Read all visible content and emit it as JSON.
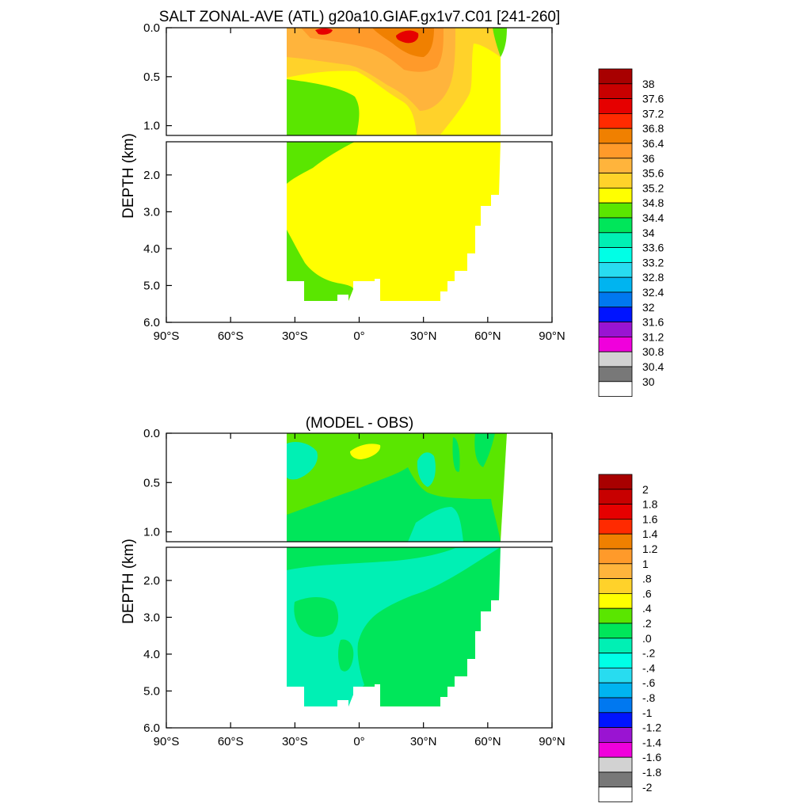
{
  "chart_data": [
    {
      "type": "heatmap",
      "title": "SALT ZONAL-AVE (ATL) g20a10.GIAF.gx1v7.C01 [241-260]",
      "ylabel": "DEPTH (km)",
      "x_ticks": [
        "90°S",
        "60°S",
        "30°S",
        "0°",
        "30°N",
        "60°N",
        "90°N"
      ],
      "y_ticks_upper": [
        "0.0",
        "0.5",
        "1.0"
      ],
      "y_ticks_lower": [
        "2.0",
        "3.0",
        "4.0",
        "5.0",
        "6.0"
      ],
      "xlim": [
        -90,
        90
      ],
      "ylim_km": [
        6.0,
        0.0
      ],
      "colorbar": {
        "labels": [
          "38",
          "37.6",
          "37.2",
          "36.8",
          "36.4",
          "36",
          "35.6",
          "35.2",
          "34.8",
          "34.4",
          "34",
          "33.6",
          "33.2",
          "32.8",
          "32.4",
          "32",
          "31.6",
          "31.2",
          "30.8",
          "30.4",
          "30"
        ],
        "colors": [
          "#a80000",
          "#c80000",
          "#e60000",
          "#ff2a00",
          "#f08000",
          "#ff9a2a",
          "#ffb43c",
          "#ffd22a",
          "#ffff00",
          "#5ae600",
          "#00e65a",
          "#00f0b4",
          "#00ffe6",
          "#28dcf0",
          "#00b4f0",
          "#0078f0",
          "#0014ff",
          "#9a14d2",
          "#f000dc",
          "#d2d2d2",
          "#787878",
          "#ffffff"
        ]
      }
    },
    {
      "type": "heatmap",
      "title": "(MODEL - OBS)",
      "ylabel": "DEPTH (km)",
      "x_ticks": [
        "90°S",
        "60°S",
        "30°S",
        "0°",
        "30°N",
        "60°N",
        "90°N"
      ],
      "y_ticks_upper": [
        "0.0",
        "0.5",
        "1.0"
      ],
      "y_ticks_lower": [
        "2.0",
        "3.0",
        "4.0",
        "5.0",
        "6.0"
      ],
      "xlim": [
        -90,
        90
      ],
      "ylim_km": [
        6.0,
        0.0
      ],
      "colorbar": {
        "labels": [
          "2",
          "1.8",
          "1.6",
          "1.4",
          "1.2",
          "1",
          ".8",
          ".6",
          ".4",
          ".2",
          ".0",
          "-.2",
          "-.4",
          "-.6",
          "-.8",
          "-1",
          "-1.2",
          "-1.4",
          "-1.6",
          "-1.8",
          "-2"
        ],
        "colors": [
          "#a80000",
          "#c80000",
          "#e60000",
          "#ff2a00",
          "#f08000",
          "#ff9a2a",
          "#ffb43c",
          "#ffd22a",
          "#ffff00",
          "#5ae600",
          "#00e65a",
          "#00f0b4",
          "#00ffe6",
          "#28dcf0",
          "#00b4f0",
          "#0078f0",
          "#0014ff",
          "#9a14d2",
          "#f000dc",
          "#d2d2d2",
          "#787878",
          "#ffffff"
        ]
      }
    }
  ]
}
